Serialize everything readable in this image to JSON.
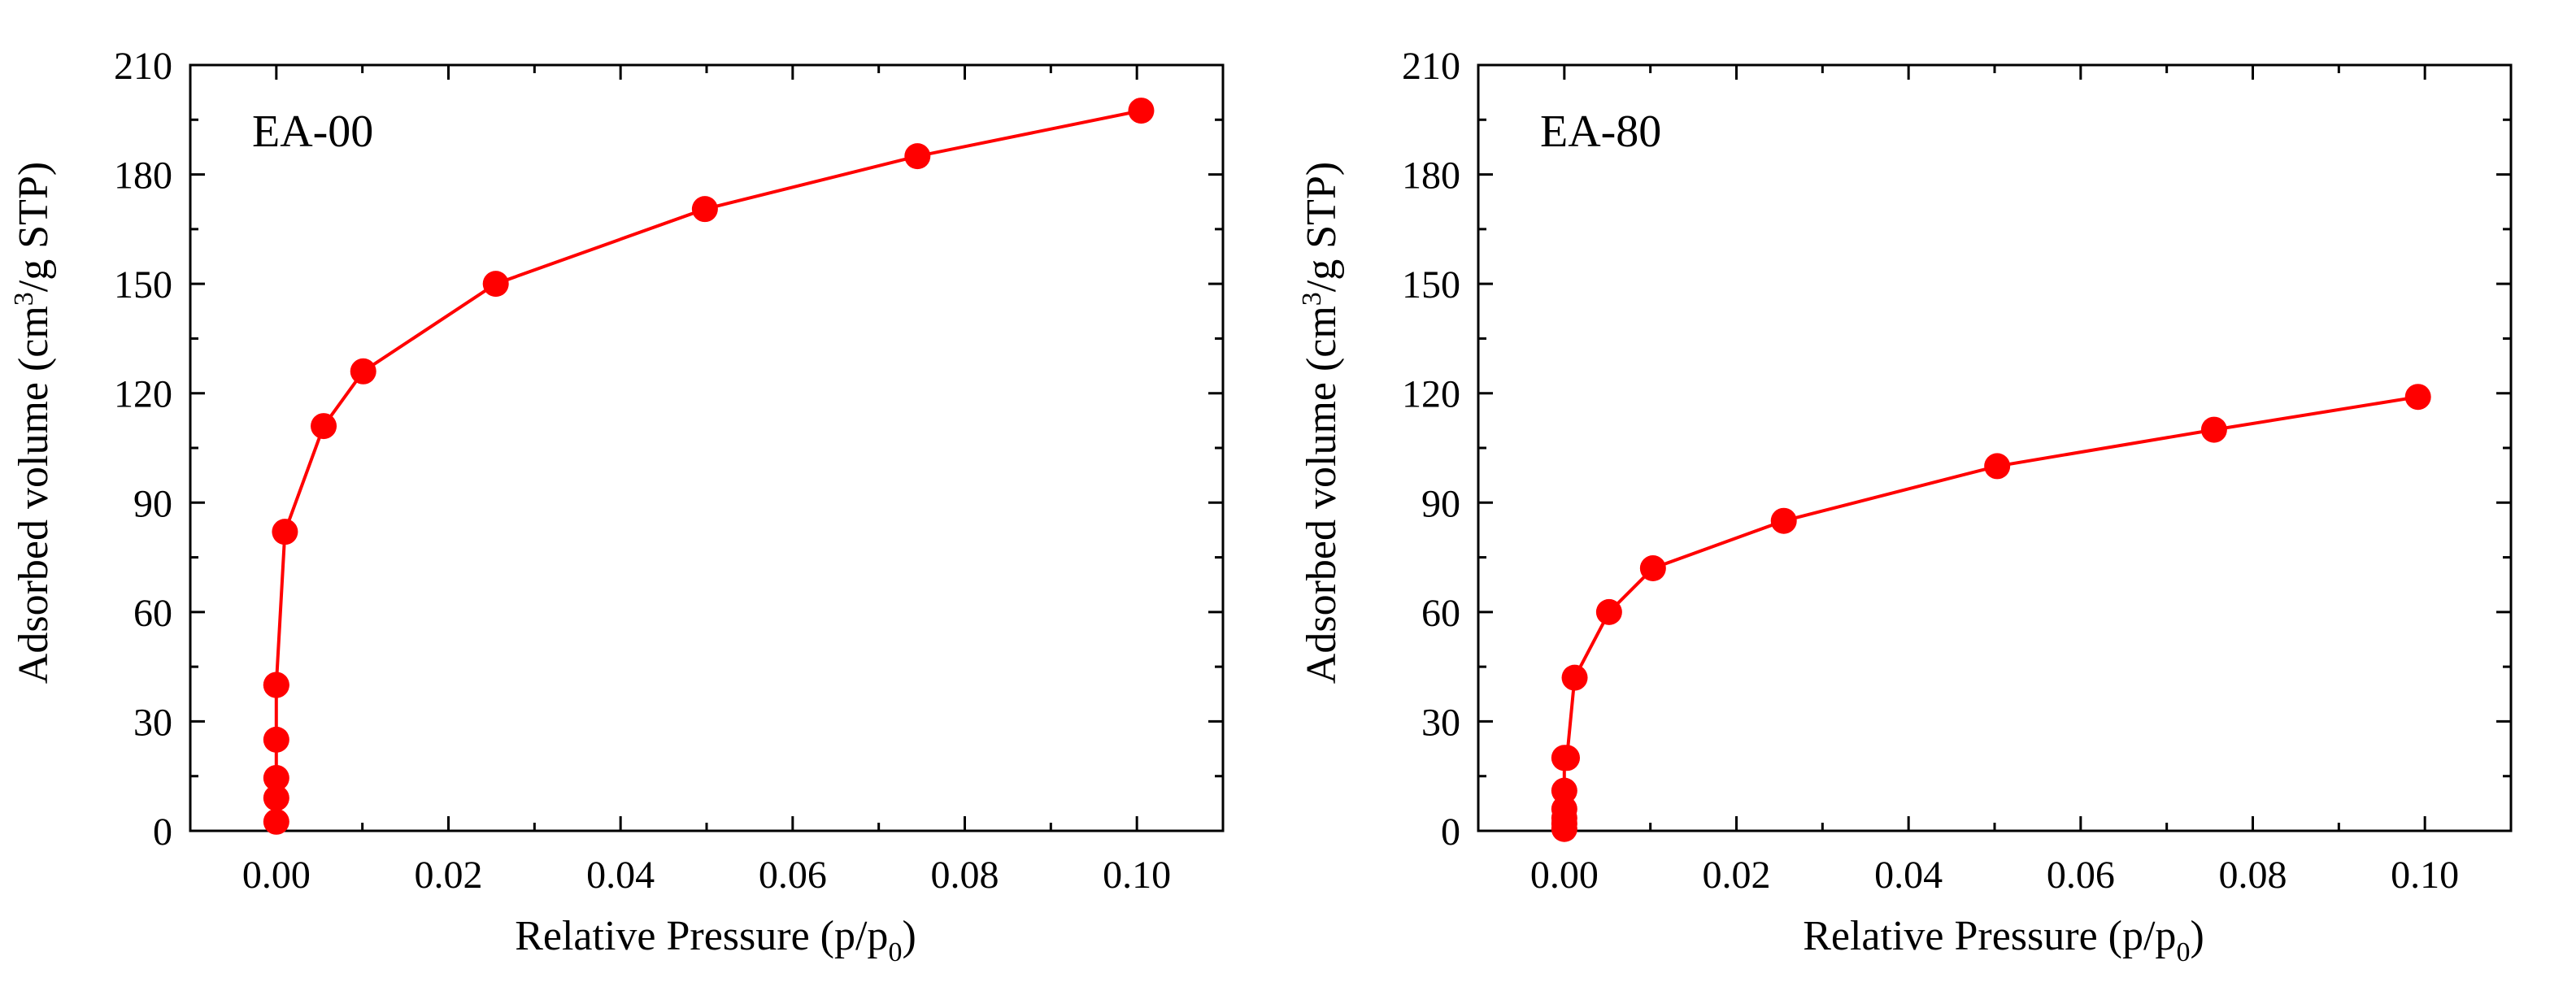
{
  "chart_data": [
    {
      "type": "scatter",
      "panel_label": "EA-00",
      "xlabel": "Relative Pressure (p/p",
      "xlabel_sub": "0",
      "xlabel_end": ")",
      "ylabel": "Adsorbed volume (cm",
      "ylabel_sup": "3",
      "ylabel_end": "/g STP)",
      "xlim": [
        -0.01,
        0.11
      ],
      "ylim": [
        0,
        210
      ],
      "xticks": [
        0.0,
        0.02,
        0.04,
        0.06,
        0.08,
        0.1
      ],
      "xtick_labels": [
        "0.00",
        "0.02",
        "0.04",
        "0.06",
        "0.08",
        "0.10"
      ],
      "yticks": [
        0,
        30,
        60,
        90,
        120,
        150,
        180,
        210
      ],
      "ytick_labels": [
        "0",
        "30",
        "60",
        "90",
        "120",
        "150",
        "180",
        "210"
      ],
      "series": [
        {
          "name": "EA-00",
          "color": "#ff0000",
          "marker": "circle",
          "line": true,
          "x": [
            0.0,
            0.0,
            0.0,
            0.0,
            0.0,
            0.0,
            0.001,
            0.0055,
            0.0101,
            0.0255,
            0.0498,
            0.0745,
            0.1005
          ],
          "y": [
            2.5,
            9,
            14.5,
            25,
            40,
            40,
            82,
            111,
            126,
            150,
            170.5,
            185,
            197.5
          ]
        }
      ]
    },
    {
      "type": "scatter",
      "panel_label": "EA-80",
      "xlabel": "Relative Pressure (p/p",
      "xlabel_sub": "0",
      "xlabel_end": ")",
      "ylabel": "Adsorbed volume (cm",
      "ylabel_sup": "3",
      "ylabel_end": "/g STP)",
      "xlim": [
        -0.01,
        0.11
      ],
      "ylim": [
        0,
        210
      ],
      "xticks": [
        0.0,
        0.02,
        0.04,
        0.06,
        0.08,
        0.1
      ],
      "xtick_labels": [
        "0.00",
        "0.02",
        "0.04",
        "0.06",
        "0.08",
        "0.10"
      ],
      "yticks": [
        0,
        30,
        60,
        90,
        120,
        150,
        180,
        210
      ],
      "ytick_labels": [
        "0",
        "30",
        "60",
        "90",
        "120",
        "150",
        "180",
        "210"
      ],
      "series": [
        {
          "name": "EA-80",
          "color": "#ff0000",
          "marker": "circle",
          "line": true,
          "x": [
            0.0,
            0.0,
            0.0,
            0.0,
            0.0,
            0.0,
            0.0003,
            0.0012,
            0.0052,
            0.0103,
            0.0255,
            0.0503,
            0.0755,
            0.0992
          ],
          "y": [
            0.5,
            2,
            3.5,
            6,
            11,
            20,
            20,
            42,
            60,
            72,
            85,
            100,
            110,
            119
          ]
        }
      ]
    }
  ]
}
